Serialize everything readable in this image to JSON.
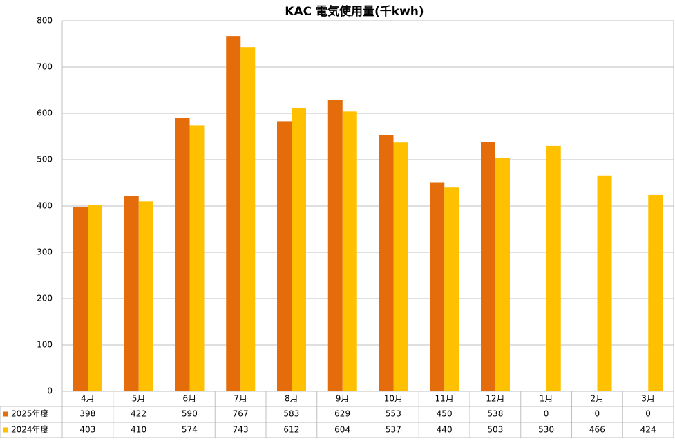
{
  "chart_data": {
    "type": "bar",
    "title": "KAC 電気使用量(千kwh)",
    "categories": [
      "4月",
      "5月",
      "6月",
      "7月",
      "8月",
      "9月",
      "10月",
      "11月",
      "12月",
      "1月",
      "2月",
      "3月"
    ],
    "series": [
      {
        "name": "2025年度",
        "color": "#e46c0a",
        "values": [
          398,
          422,
          590,
          767,
          583,
          629,
          553,
          450,
          538,
          0,
          0,
          0
        ]
      },
      {
        "name": "2024年度",
        "color": "#ffc000",
        "values": [
          403,
          410,
          574,
          743,
          612,
          604,
          537,
          440,
          503,
          530,
          466,
          424
        ]
      }
    ],
    "ylim": [
      0,
      800
    ],
    "yticks": [
      0,
      100,
      200,
      300,
      400,
      500,
      600,
      700,
      800
    ],
    "grid": true
  }
}
